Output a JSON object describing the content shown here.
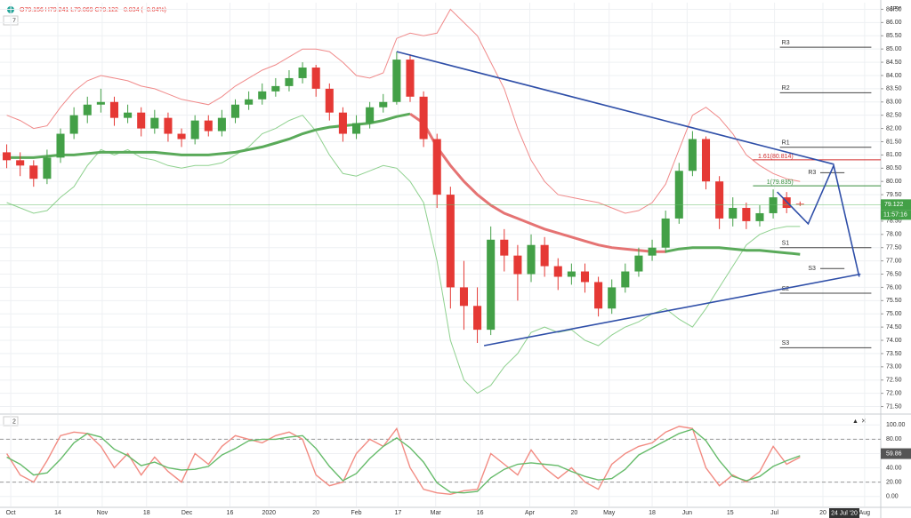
{
  "chart_data": {
    "type": "candlestick",
    "header": "O79.156 H79.241 L79.069 C79.122 −0.034 (−0.04%)",
    "symbol": "JPY",
    "pane_label": "7",
    "countdown": "11:57:16",
    "date_label": "24 Jul '20",
    "up_color": "#43a047",
    "down_color": "#e53935",
    "grid": true,
    "x": [
      0,
      1,
      2,
      3,
      4,
      5,
      6,
      7,
      8,
      9,
      10,
      11,
      12,
      13,
      14,
      15,
      16,
      17,
      18,
      19,
      20,
      21,
      22,
      23,
      24,
      25,
      26,
      27,
      28,
      29,
      30,
      31,
      32,
      33,
      34,
      35,
      36,
      37,
      38,
      39,
      40,
      41,
      42,
      43,
      44,
      45,
      46,
      47,
      48,
      49,
      50,
      51,
      52,
      53,
      54,
      55,
      56,
      57,
      58,
      59
    ],
    "xlim": [
      -0.5,
      65
    ],
    "xticks": [
      {
        "value": 0.3,
        "label": "Oct"
      },
      {
        "value": 3.8,
        "label": "14"
      },
      {
        "value": 7.1,
        "label": "Nov"
      },
      {
        "value": 10.4,
        "label": "18"
      },
      {
        "value": 13.4,
        "label": "Dec"
      },
      {
        "value": 16.6,
        "label": "16"
      },
      {
        "value": 19.5,
        "label": "2020"
      },
      {
        "value": 23,
        "label": "20"
      },
      {
        "value": 26,
        "label": "Feb"
      },
      {
        "value": 29.1,
        "label": "17"
      },
      {
        "value": 31.9,
        "label": "Mar"
      },
      {
        "value": 35.2,
        "label": "16"
      },
      {
        "value": 38.9,
        "label": "Apr"
      },
      {
        "value": 42.2,
        "label": "20"
      },
      {
        "value": 44.8,
        "label": "May"
      },
      {
        "value": 48,
        "label": "18"
      },
      {
        "value": 50.6,
        "label": "Jun"
      },
      {
        "value": 53.8,
        "label": "15"
      },
      {
        "value": 57.1,
        "label": "Jul"
      },
      {
        "value": 60.7,
        "label": "20"
      },
      {
        "value": 63.8,
        "label": "Aug"
      }
    ],
    "ylim": [
      71.25,
      86.75
    ],
    "yticks": [
      {
        "value": 71.5,
        "label": "71.50"
      },
      {
        "value": 72,
        "label": "72.00"
      },
      {
        "value": 72.5,
        "label": "72.50"
      },
      {
        "value": 73,
        "label": "73.00"
      },
      {
        "value": 73.5,
        "label": "73.50"
      },
      {
        "value": 74,
        "label": "74.00"
      },
      {
        "value": 74.5,
        "label": "74.50"
      },
      {
        "value": 75,
        "label": "75.00"
      },
      {
        "value": 75.5,
        "label": "75.50"
      },
      {
        "value": 76,
        "label": "76.00"
      },
      {
        "value": 76.5,
        "label": "76.50"
      },
      {
        "value": 77,
        "label": "77.00"
      },
      {
        "value": 77.5,
        "label": "77.50"
      },
      {
        "value": 78,
        "label": "78.00"
      },
      {
        "value": 78.5,
        "label": "78.50"
      },
      {
        "value": 79,
        "label": "79.00"
      },
      {
        "value": 79.5,
        "label": "79.50"
      },
      {
        "value": 80,
        "label": "80.00"
      },
      {
        "value": 80.5,
        "label": "80.50"
      },
      {
        "value": 81,
        "label": "81.00"
      },
      {
        "value": 81.5,
        "label": "81.50"
      },
      {
        "value": 82,
        "label": "82.00"
      },
      {
        "value": 82.5,
        "label": "82.50"
      },
      {
        "value": 83,
        "label": "83.00"
      },
      {
        "value": 83.5,
        "label": "83.50"
      },
      {
        "value": 84,
        "label": "84.00"
      },
      {
        "value": 84.5,
        "label": "84.50"
      },
      {
        "value": 85,
        "label": "85.00"
      },
      {
        "value": 85.5,
        "label": "85.50"
      },
      {
        "value": 86,
        "label": "86.00"
      },
      {
        "value": 86.5,
        "label": "86.50"
      }
    ],
    "open": [
      81.1,
      80.8,
      80.6,
      80.1,
      80.9,
      81.8,
      82.5,
      82.9,
      83.0,
      82.4,
      82.6,
      82.0,
      82.4,
      81.8,
      81.6,
      82.3,
      81.9,
      82.4,
      82.9,
      83.1,
      83.4,
      83.6,
      83.9,
      84.3,
      83.5,
      82.6,
      81.8,
      82.2,
      82.8,
      83.0,
      84.6,
      83.2,
      81.6,
      79.5,
      76.0,
      75.3,
      74.4,
      77.8,
      77.2,
      76.5,
      77.6,
      76.8,
      76.4,
      76.6,
      76.2,
      75.2,
      76.0,
      76.6,
      77.2,
      77.5,
      78.6,
      80.4,
      81.6,
      80.0,
      78.6,
      79.0,
      78.5,
      78.8,
      79.4,
      79.156
    ],
    "high": [
      81.4,
      81.1,
      80.8,
      81.2,
      82.0,
      82.8,
      83.2,
      83.5,
      83.2,
      82.9,
      82.8,
      82.7,
      82.6,
      82.0,
      82.5,
      82.5,
      82.7,
      83.1,
      83.4,
      83.7,
      83.9,
      84.2,
      84.5,
      84.4,
      83.7,
      82.8,
      82.5,
      83.0,
      83.3,
      84.9,
      84.8,
      83.4,
      81.8,
      79.8,
      77.0,
      76.0,
      78.3,
      78.2,
      77.6,
      78.0,
      77.9,
      77.1,
      76.9,
      76.9,
      76.4,
      76.3,
      76.9,
      77.5,
      77.8,
      78.9,
      80.7,
      81.9,
      81.7,
      80.2,
      79.4,
      79.2,
      79.1,
      79.7,
      79.6,
      79.241
    ],
    "low": [
      80.5,
      80.2,
      79.8,
      79.9,
      80.7,
      81.6,
      82.2,
      82.6,
      82.1,
      82.2,
      81.7,
      81.8,
      81.5,
      81.3,
      81.4,
      81.7,
      81.7,
      82.2,
      82.7,
      82.9,
      83.2,
      83.4,
      83.7,
      83.2,
      82.3,
      81.5,
      81.6,
      82.0,
      82.6,
      82.9,
      83.0,
      81.3,
      79.0,
      75.2,
      74.4,
      73.9,
      74.2,
      76.6,
      75.5,
      76.2,
      76.4,
      75.9,
      76.1,
      75.8,
      74.9,
      75.0,
      75.8,
      76.4,
      77.0,
      77.3,
      78.4,
      80.2,
      79.7,
      78.2,
      78.3,
      78.2,
      78.3,
      78.6,
      78.8,
      79.069
    ],
    "close": [
      80.8,
      80.6,
      80.1,
      80.9,
      81.8,
      82.5,
      82.9,
      83.0,
      82.4,
      82.6,
      82.0,
      82.4,
      81.8,
      81.6,
      82.3,
      81.9,
      82.4,
      82.9,
      83.1,
      83.4,
      83.6,
      83.9,
      84.3,
      83.5,
      82.6,
      81.8,
      82.2,
      82.8,
      83.0,
      84.6,
      83.2,
      81.6,
      79.5,
      76.0,
      75.3,
      74.4,
      77.8,
      77.2,
      76.5,
      77.6,
      76.8,
      76.4,
      76.6,
      76.2,
      75.2,
      76.0,
      76.6,
      77.2,
      77.5,
      78.6,
      80.4,
      81.6,
      80.0,
      78.6,
      79.0,
      78.5,
      78.8,
      79.4,
      79.0,
      79.122
    ],
    "overlays": [
      {
        "color": "#f08a8a",
        "width": 1,
        "values": [
          82.5,
          82.3,
          82.0,
          82.1,
          82.8,
          83.4,
          83.8,
          84.0,
          83.9,
          83.8,
          83.6,
          83.5,
          83.3,
          83.1,
          83.0,
          82.9,
          83.2,
          83.6,
          83.9,
          84.2,
          84.4,
          84.7,
          85.0,
          85.0,
          84.9,
          84.5,
          84.0,
          83.9,
          84.1,
          85.4,
          85.6,
          85.5,
          85.6,
          86.5,
          86.0,
          85.5,
          84.5,
          83.5,
          82.0,
          80.8,
          80.0,
          79.5,
          79.4,
          79.3,
          79.2,
          79.0,
          78.8,
          78.9,
          79.2,
          79.9,
          81.2,
          82.5,
          82.8,
          82.4,
          81.8,
          81.0,
          80.6,
          80.3,
          80.1,
          80.0
        ]
      },
      {
        "color": "#8fd18f",
        "width": 1,
        "values": [
          79.2,
          79.0,
          78.8,
          78.9,
          79.4,
          79.8,
          80.6,
          81.2,
          81.0,
          81.2,
          80.9,
          80.8,
          80.6,
          80.5,
          80.6,
          80.6,
          80.7,
          81.0,
          81.3,
          81.8,
          82.0,
          82.3,
          82.5,
          81.9,
          81.0,
          80.3,
          80.2,
          80.4,
          80.6,
          80.5,
          80.0,
          79.2,
          77.0,
          74.0,
          72.5,
          72.0,
          72.3,
          73.0,
          73.5,
          74.3,
          74.5,
          74.3,
          74.4,
          74.0,
          73.8,
          74.2,
          74.5,
          74.7,
          75.0,
          75.2,
          74.8,
          74.5,
          75.2,
          76.0,
          76.8,
          77.6,
          78.0,
          78.2,
          78.3,
          78.3
        ]
      },
      {
        "color": "#5aaa5a",
        "width": 3,
        "values": [
          80.9,
          80.9,
          80.9,
          80.95,
          81.0,
          81.0,
          81.05,
          81.1,
          81.1,
          81.1,
          81.1,
          81.1,
          81.05,
          81.0,
          81.0,
          81.0,
          81.05,
          81.1,
          81.2,
          81.3,
          81.45,
          81.6,
          81.8,
          81.95,
          82.05,
          82.1,
          82.15,
          82.2,
          82.3,
          82.45,
          82.55,
          null,
          null,
          null,
          null,
          null,
          null,
          null,
          null,
          null,
          null,
          null,
          null,
          null,
          null,
          null,
          null,
          null,
          null,
          77.35,
          77.45,
          77.5,
          77.5,
          77.5,
          77.45,
          77.4,
          77.4,
          77.35,
          77.3,
          77.25
        ]
      },
      {
        "color": "#e57373",
        "width": 3,
        "values": [
          null,
          null,
          null,
          null,
          null,
          null,
          null,
          null,
          null,
          null,
          null,
          null,
          null,
          null,
          null,
          null,
          null,
          null,
          null,
          null,
          null,
          null,
          null,
          null,
          null,
          null,
          null,
          null,
          null,
          null,
          82.55,
          82.2,
          81.3,
          80.6,
          80.0,
          79.5,
          79.1,
          78.8,
          78.6,
          78.4,
          78.2,
          78.05,
          77.9,
          77.75,
          77.6,
          77.5,
          77.45,
          77.4,
          77.35,
          77.35,
          null,
          null,
          null,
          null,
          null,
          null,
          null,
          null,
          null,
          null
        ]
      }
    ],
    "levels": [
      {
        "label": "R3",
        "value": 85.07
      },
      {
        "label": "R2",
        "value": 83.35
      },
      {
        "label": "R1",
        "value": 81.29
      },
      {
        "label": "S1",
        "value": 77.5
      },
      {
        "label": "S2",
        "value": 75.78
      },
      {
        "label": "S3",
        "value": 73.72
      }
    ],
    "minor_levels": [
      {
        "label": "R3",
        "value": 80.33
      },
      {
        "label": "S3",
        "value": 76.71
      }
    ],
    "fib": [
      {
        "label": "1.61(80.814)",
        "value": 80.814,
        "color": "#d32f2f"
      },
      {
        "label": "1(79.835)",
        "value": 79.835,
        "color": "#388e3c"
      }
    ],
    "trend_color": "#2f4fa8",
    "trendlines": [
      {
        "x": [
          29,
          61.5
        ],
        "y": [
          84.9,
          80.65
        ]
      },
      {
        "x": [
          35.5,
          63.5
        ],
        "y": [
          73.8,
          76.5
        ]
      },
      {
        "x": [
          57.3,
          59.6,
          61.5,
          63.4
        ],
        "y": [
          79.6,
          78.4,
          80.6,
          76.4
        ]
      }
    ],
    "oscillator": {
      "pane_label": "2",
      "ylim": [
        -14,
        114
      ],
      "yticks": [
        {
          "value": 0,
          "label": "0.00"
        },
        {
          "value": 20,
          "label": "20.00"
        },
        {
          "value": 40,
          "label": "40.00"
        },
        {
          "value": 60,
          "label": "60.00"
        },
        {
          "value": 80,
          "label": "80.00"
        },
        {
          "value": 100,
          "label": "100.00"
        }
      ],
      "dashed": [
        20,
        80
      ],
      "last": 59.86,
      "series": [
        {
          "color": "#f28b82",
          "values": [
            60,
            30,
            20,
            50,
            85,
            90,
            88,
            70,
            40,
            60,
            30,
            55,
            35,
            20,
            60,
            45,
            70,
            85,
            80,
            75,
            85,
            90,
            80,
            30,
            15,
            20,
            60,
            80,
            70,
            95,
            40,
            10,
            5,
            3,
            8,
            10,
            60,
            45,
            30,
            65,
            40,
            25,
            40,
            20,
            10,
            45,
            60,
            70,
            75,
            90,
            98,
            95,
            40,
            15,
            30,
            20,
            35,
            70,
            45,
            55
          ]
        },
        {
          "color": "#66bb6a",
          "values": [
            55,
            45,
            30,
            33,
            52,
            75,
            88,
            83,
            66,
            57,
            43,
            48,
            40,
            37,
            38,
            42,
            58,
            67,
            78,
            80,
            80,
            83,
            85,
            67,
            42,
            22,
            32,
            53,
            70,
            82,
            68,
            48,
            19,
            6,
            5,
            7,
            26,
            38,
            45,
            47,
            45,
            43,
            35,
            28,
            23,
            25,
            38,
            58,
            68,
            78,
            88,
            94,
            78,
            50,
            28,
            22,
            28,
            42,
            50,
            57
          ]
        }
      ]
    }
  }
}
